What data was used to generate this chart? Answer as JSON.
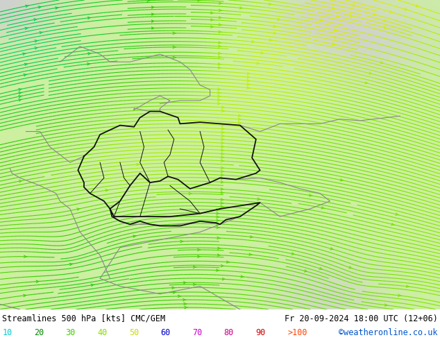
{
  "title_left": "Streamlines 500 hPa [kts] CMC/GEM",
  "title_right": "Fr 20-09-2024 18:00 UTC (12+06)",
  "credit": "©weatheronline.co.uk",
  "speed_labels": [
    "10",
    "20",
    "30",
    "40",
    "50",
    "60",
    "70",
    "80",
    "90",
    ">100"
  ],
  "speed_colors_legend": [
    "#00ffff",
    "#00cc00",
    "#88dd00",
    "#aaee00",
    "#ccff00",
    "#ffff00",
    "#ffcc00",
    "#ff8800",
    "#ff4400",
    "#ff2200"
  ],
  "background_color": "#ffffff",
  "land_green": "#c8f0a0",
  "sea_gray": "#d8d8d8",
  "figsize": [
    6.34,
    4.9
  ],
  "dpi": 100
}
